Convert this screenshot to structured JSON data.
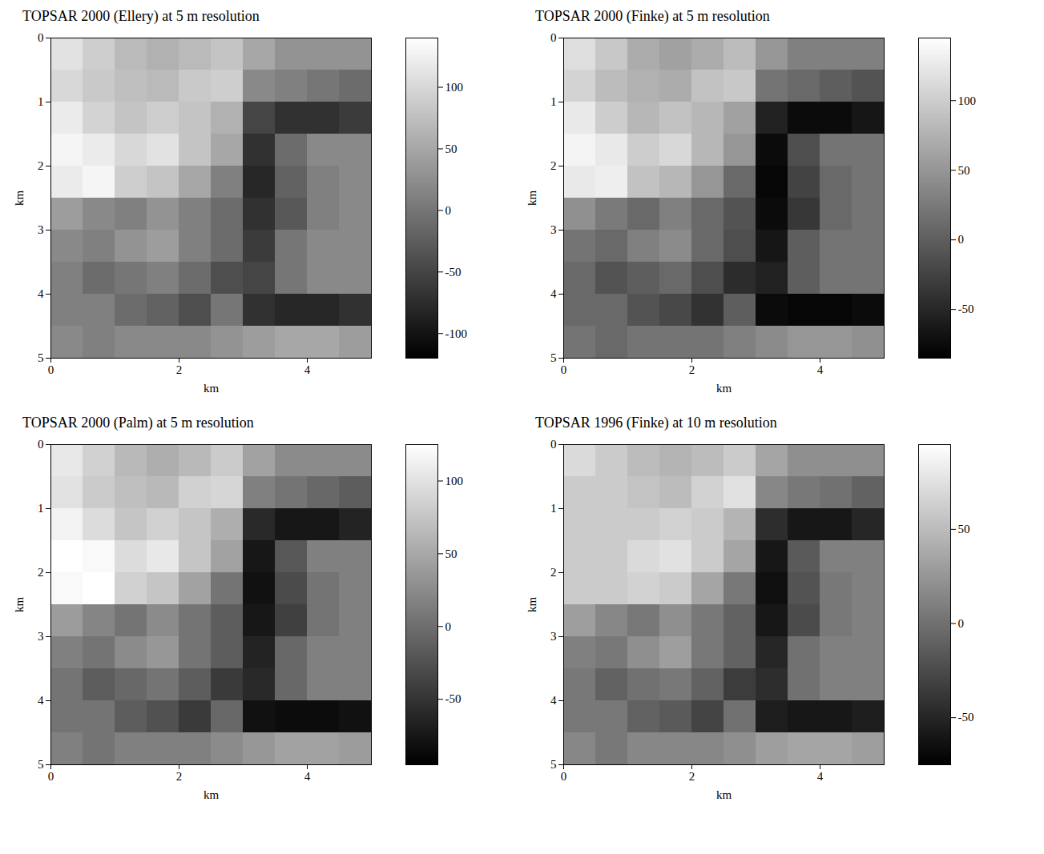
{
  "chart_data": [
    {
      "type": "heatmap",
      "title": "TOPSAR 2000 (Ellery) at 5 m resolution",
      "x_label": "km",
      "y_label": "km",
      "xlim": [
        0,
        5
      ],
      "ylim": [
        0,
        5
      ],
      "xticks": [
        0,
        2,
        4
      ],
      "yticks": [
        0,
        1,
        2,
        3,
        4,
        5
      ],
      "x": [
        0.25,
        0.75,
        1.25,
        1.75,
        2.25,
        2.75,
        3.25,
        3.75,
        4.25,
        4.75
      ],
      "y": [
        0.25,
        0.75,
        1.25,
        1.75,
        2.25,
        2.75,
        3.25,
        3.75,
        4.25,
        4.75
      ],
      "values": [
        [
          110,
          90,
          70,
          60,
          70,
          80,
          50,
          30,
          30,
          30
        ],
        [
          100,
          85,
          75,
          70,
          85,
          90,
          20,
          10,
          0,
          -10
        ],
        [
          120,
          95,
          80,
          90,
          80,
          60,
          -50,
          -70,
          -70,
          -60
        ],
        [
          130,
          120,
          100,
          110,
          80,
          50,
          -70,
          -10,
          20,
          20
        ],
        [
          120,
          130,
          90,
          80,
          50,
          10,
          -80,
          -20,
          10,
          20
        ],
        [
          40,
          20,
          10,
          30,
          10,
          -10,
          -70,
          -30,
          10,
          20
        ],
        [
          20,
          10,
          30,
          40,
          10,
          -10,
          -60,
          0,
          20,
          20
        ],
        [
          10,
          -10,
          0,
          10,
          -10,
          -40,
          -50,
          0,
          20,
          20
        ],
        [
          10,
          10,
          -10,
          -20,
          -40,
          0,
          -70,
          -80,
          -80,
          -70
        ],
        [
          20,
          10,
          20,
          20,
          20,
          30,
          40,
          50,
          50,
          40
        ]
      ],
      "colorbar": {
        "range": [
          -120,
          140
        ],
        "ticks": [
          -100,
          -50,
          0,
          50,
          100
        ]
      }
    },
    {
      "type": "heatmap",
      "title": "TOPSAR 2000 (Finke) at 5 m resolution",
      "x_label": "km",
      "y_label": "km",
      "xlim": [
        0,
        5
      ],
      "ylim": [
        0,
        5
      ],
      "xticks": [
        0,
        2,
        4
      ],
      "yticks": [
        0,
        1,
        2,
        3,
        4,
        5
      ],
      "x": [
        0.25,
        0.75,
        1.25,
        1.75,
        2.25,
        2.75,
        3.25,
        3.75,
        4.25,
        4.75
      ],
      "y": [
        0.25,
        0.75,
        1.25,
        1.75,
        2.25,
        2.75,
        3.25,
        3.75,
        4.25,
        4.75
      ],
      "values": [
        [
          115,
          95,
          70,
          60,
          70,
          85,
          50,
          30,
          30,
          30
        ],
        [
          105,
          85,
          75,
          70,
          90,
          95,
          20,
          10,
          0,
          -10
        ],
        [
          125,
          100,
          80,
          90,
          80,
          60,
          -55,
          -75,
          -75,
          -65
        ],
        [
          135,
          125,
          100,
          110,
          80,
          50,
          -75,
          -15,
          20,
          20
        ],
        [
          125,
          130,
          90,
          80,
          50,
          10,
          -80,
          -25,
          10,
          20
        ],
        [
          45,
          25,
          10,
          30,
          10,
          -10,
          -75,
          -35,
          10,
          20
        ],
        [
          20,
          10,
          30,
          40,
          10,
          -15,
          -65,
          0,
          20,
          20
        ],
        [
          10,
          -10,
          0,
          10,
          -15,
          -45,
          -55,
          0,
          20,
          20
        ],
        [
          10,
          10,
          -10,
          -20,
          -40,
          0,
          -75,
          -80,
          -80,
          -75
        ],
        [
          20,
          10,
          20,
          20,
          20,
          30,
          40,
          50,
          50,
          45
        ]
      ],
      "colorbar": {
        "range": [
          -85,
          145
        ],
        "ticks": [
          -50,
          0,
          50,
          100
        ]
      }
    },
    {
      "type": "heatmap",
      "title": "TOPSAR 2000 (Palm) at 5 m resolution",
      "x_label": "km",
      "y_label": "km",
      "xlim": [
        0,
        5
      ],
      "ylim": [
        0,
        5
      ],
      "xticks": [
        0,
        2,
        4
      ],
      "yticks": [
        0,
        1,
        2,
        3,
        4,
        5
      ],
      "x": [
        0.25,
        0.75,
        1.25,
        1.75,
        2.25,
        2.75,
        3.25,
        3.75,
        4.25,
        4.75
      ],
      "y": [
        0.25,
        0.75,
        1.25,
        1.75,
        2.25,
        2.75,
        3.25,
        3.75,
        4.25,
        4.75
      ],
      "values": [
        [
          105,
          85,
          65,
          55,
          65,
          80,
          45,
          25,
          25,
          25
        ],
        [
          100,
          80,
          70,
          65,
          85,
          90,
          15,
          5,
          -5,
          -15
        ],
        [
          115,
          95,
          75,
          85,
          75,
          55,
          -60,
          -75,
          -75,
          -65
        ],
        [
          125,
          120,
          95,
          105,
          75,
          45,
          -75,
          -20,
          15,
          15
        ],
        [
          120,
          125,
          85,
          75,
          45,
          5,
          -80,
          -30,
          5,
          15
        ],
        [
          40,
          20,
          5,
          25,
          5,
          -15,
          -75,
          -40,
          5,
          15
        ],
        [
          15,
          5,
          25,
          35,
          5,
          -15,
          -65,
          -5,
          15,
          15
        ],
        [
          5,
          -15,
          -5,
          5,
          -15,
          -45,
          -60,
          -5,
          15,
          15
        ],
        [
          5,
          5,
          -15,
          -25,
          -45,
          -5,
          -80,
          -85,
          -85,
          -80
        ],
        [
          15,
          5,
          15,
          15,
          15,
          25,
          35,
          45,
          45,
          40
        ]
      ],
      "colorbar": {
        "range": [
          -95,
          125
        ],
        "ticks": [
          -50,
          0,
          50,
          100
        ]
      }
    },
    {
      "type": "heatmap",
      "title": "TOPSAR 1996 (Finke) at 10 m resolution",
      "x_label": "km",
      "y_label": "km",
      "xlim": [
        0,
        5
      ],
      "ylim": [
        0,
        5
      ],
      "xticks": [
        0,
        2,
        4
      ],
      "yticks": [
        0,
        1,
        2,
        3,
        4,
        5
      ],
      "x": [
        0.25,
        0.75,
        1.25,
        1.75,
        2.25,
        2.75,
        3.25,
        3.75,
        4.25,
        4.75
      ],
      "y": [
        0.25,
        0.75,
        1.25,
        1.75,
        2.25,
        2.75,
        3.25,
        3.75,
        4.25,
        4.75
      ],
      "values": [
        [
          70,
          60,
          50,
          45,
          50,
          60,
          35,
          20,
          20,
          20
        ],
        [
          60,
          60,
          55,
          50,
          65,
          75,
          15,
          5,
          0,
          -10
        ],
        [
          60,
          60,
          60,
          65,
          60,
          45,
          -45,
          -60,
          -60,
          -50
        ],
        [
          60,
          60,
          70,
          75,
          60,
          35,
          -60,
          -15,
          10,
          10
        ],
        [
          60,
          60,
          65,
          60,
          35,
          5,
          -65,
          -20,
          5,
          10
        ],
        [
          30,
          15,
          5,
          20,
          5,
          -10,
          -60,
          -25,
          5,
          10
        ],
        [
          10,
          5,
          20,
          30,
          5,
          -10,
          -50,
          0,
          10,
          10
        ],
        [
          5,
          -10,
          0,
          5,
          -10,
          -35,
          -45,
          0,
          10,
          10
        ],
        [
          5,
          5,
          -10,
          -15,
          -30,
          0,
          -55,
          -60,
          -60,
          -55
        ],
        [
          15,
          5,
          15,
          15,
          15,
          20,
          30,
          35,
          35,
          30
        ]
      ],
      "colorbar": {
        "range": [
          -75,
          95
        ],
        "ticks": [
          -50,
          0,
          50
        ]
      }
    }
  ]
}
